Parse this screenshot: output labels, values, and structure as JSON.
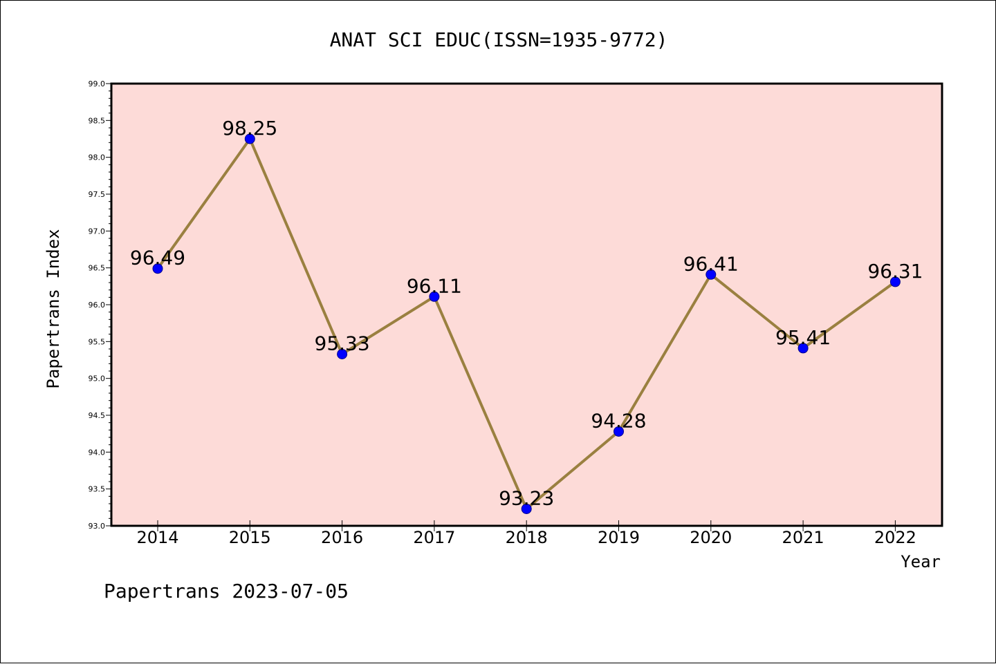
{
  "chart_data": {
    "type": "line",
    "title": "ANAT SCI EDUC(ISSN=1935-9772)",
    "xlabel": "Year",
    "ylabel": "Papertrans Index",
    "categories": [
      "2014",
      "2015",
      "2016",
      "2017",
      "2018",
      "2019",
      "2020",
      "2021",
      "2022"
    ],
    "series": [
      {
        "values": [
          96.49,
          98.25,
          95.33,
          96.11,
          93.23,
          94.28,
          96.41,
          95.41,
          96.31
        ],
        "labels": [
          "96.49",
          "98.25",
          "95.33",
          "96.11",
          "93.23",
          "94.28",
          "96.41",
          "95.41",
          "96.31"
        ]
      }
    ],
    "ylim": [
      93.0,
      99.0
    ],
    "yticks": [
      "93.0",
      "93.5",
      "94.0",
      "94.5",
      "95.0",
      "95.5",
      "96.0",
      "96.5",
      "97.0",
      "97.5",
      "98.0",
      "98.5",
      "99.0"
    ],
    "grid": false,
    "colors": {
      "plot_background": "#fddbd8",
      "line": "#9a8040",
      "marker": "#0000ff",
      "marker_edge": "#00008b"
    }
  },
  "footer": "Papertrans 2023-07-05"
}
